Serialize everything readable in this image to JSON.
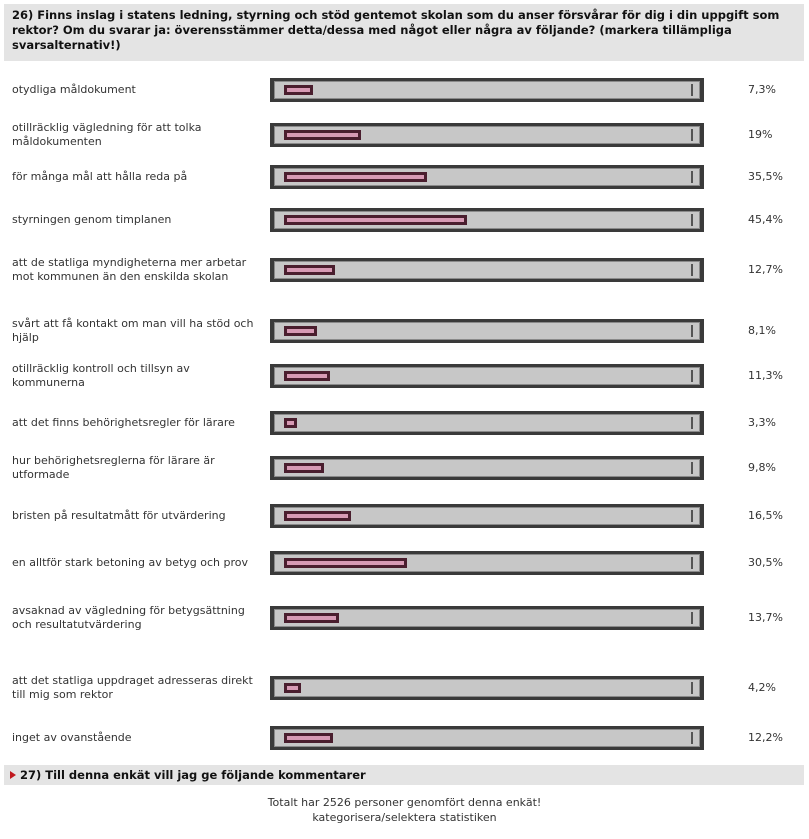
{
  "question": "26) Finns inslag i statens ledning, styrning och stöd gentemot skolan som du anser försvårar för dig i din uppgift som rektor? Om du svarar ja: överensstämmer detta/dessa med något eller några av följande? (markera tillämpliga svarsalternativ!)",
  "next_question": "27) Till denna enkät vill jag ge följande kommentarer",
  "footer": {
    "total": "Totalt har 2526 personer genomfört denna enkät!",
    "link": "kategorisera/selektera statistiken"
  },
  "colors": {
    "bar_fill": "#d79ab4",
    "bar_border": "#4a1e2e",
    "track": "#c7c7c7",
    "frame": "#3a3a3a"
  },
  "chart_data": {
    "type": "bar",
    "orientation": "horizontal",
    "xlim": [
      0,
      100
    ],
    "categories": [
      "otydliga måldokument",
      "otillräcklig vägledning för att tolka måldokumenten",
      "för många mål att hålla reda på",
      "styrningen genom timplanen",
      "att de statliga myndigheterna mer arbetar mot kommunen än den enskilda skolan",
      "svårt att få kontakt om man vill ha stöd och hjälp",
      "otillräcklig kontroll och tillsyn av kommunerna",
      "att det finns behörighetsregler för lärare",
      "hur behörighetsreglerna för lärare är utformade",
      "bristen på resultatmått för utvärdering",
      "en alltför stark betoning av betyg och prov",
      "avsaknad av vägledning för betygsättning och resultatutvärdering",
      "att det statliga uppdraget adresseras direkt till mig som rektor",
      "inget av ovanstående"
    ],
    "values": [
      7.3,
      19,
      35.5,
      45.4,
      12.7,
      8.1,
      11.3,
      3.3,
      9.8,
      16.5,
      30.5,
      13.7,
      4.2,
      12.2
    ],
    "value_labels": [
      "7,3%",
      "19%",
      "35,5%",
      "45,4%",
      "12,7%",
      "8,1%",
      "11,3%",
      "3,3%",
      "9,8%",
      "16,5%",
      "30,5%",
      "13,7%",
      "4,2%",
      "12,2%"
    ]
  }
}
